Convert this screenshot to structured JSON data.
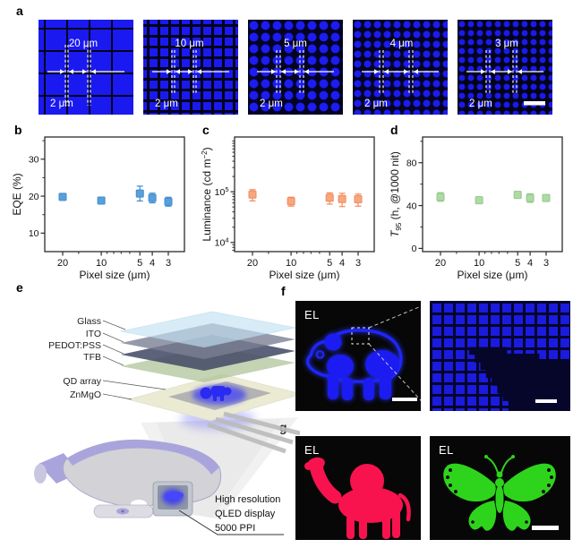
{
  "panels": {
    "a": "a",
    "b": "b",
    "c": "c",
    "d": "d",
    "e": "e",
    "f": "f",
    "g": "g"
  },
  "panel_a": {
    "micrographs": [
      {
        "pitch": "20 μm",
        "gap": "2 μm",
        "scalebar": false
      },
      {
        "pitch": "10 μm",
        "gap": "2 μm",
        "scalebar": false
      },
      {
        "pitch": "5 μm",
        "gap": "2 μm",
        "scalebar": false
      },
      {
        "pitch": "4 μm",
        "gap": "2 μm",
        "scalebar": false
      },
      {
        "pitch": "3 μm",
        "gap": "2 μm",
        "scalebar": true
      }
    ],
    "pixel_color": "#1a1af0"
  },
  "chart_data": [
    {
      "type": "scatter",
      "panel": "b",
      "xlabel": "Pixel size (μm)",
      "ylabel": [
        {
          "t": "EQE (%)"
        }
      ],
      "xscale": "log-reversed",
      "xticks": [
        20,
        10,
        5,
        4,
        3
      ],
      "xminor": [
        15,
        9,
        8,
        7,
        6
      ],
      "yscale": "linear",
      "ylim": [
        5,
        36
      ],
      "yticks": [
        {
          "v": 10,
          "t": "10"
        },
        {
          "v": 20,
          "t": "20"
        },
        {
          "v": 30,
          "t": "30"
        }
      ],
      "yminor": [
        15,
        25,
        35
      ],
      "x": [
        20,
        10,
        5,
        4,
        3
      ],
      "y": [
        19.8,
        18.8,
        20.7,
        19.5,
        18.5
      ],
      "yerr": [
        0.8,
        0.6,
        2.0,
        1.3,
        1.2
      ],
      "marker_color": "#58A0DB",
      "edge_color": "#3E8CCD"
    },
    {
      "type": "scatter",
      "panel": "c",
      "xlabel": "Pixel size (μm)",
      "ylabel": [
        {
          "t": "Luminance (cd m"
        },
        {
          "t": "−2",
          "sup": true
        },
        {
          "t": ")"
        }
      ],
      "xscale": "log-reversed",
      "xticks": [
        20,
        10,
        5,
        4,
        3
      ],
      "xminor": [
        15,
        9,
        8,
        7,
        6
      ],
      "yscale": "log",
      "ylim": [
        6600,
        1200000
      ],
      "yticks": [
        {
          "v": 10000,
          "t": "10",
          "exp": "4"
        },
        {
          "v": 100000,
          "t": "10",
          "exp": "5"
        }
      ],
      "yminor": [
        7000,
        8000,
        9000,
        20000,
        30000,
        40000,
        50000,
        60000,
        70000,
        80000,
        90000,
        200000,
        300000,
        400000,
        500000,
        600000,
        700000,
        800000,
        900000,
        1000000
      ],
      "x": [
        20,
        10,
        5,
        4,
        3
      ],
      "y": [
        88000,
        65000,
        76000,
        72000,
        71000
      ],
      "yerr": [
        22000,
        13000,
        19000,
        21000,
        19000
      ],
      "marker_color": "#F7A77E",
      "edge_color": "#F08A5C"
    },
    {
      "type": "scatter",
      "panel": "d",
      "xlabel": "Pixel size (μm)",
      "ylabel": [
        {
          "t": "T",
          "italic": true
        },
        {
          "t": "95",
          "sub": true
        },
        {
          "t": " (h, @1000 nit)"
        }
      ],
      "xscale": "log-reversed",
      "xticks": [
        20,
        10,
        5,
        4,
        3
      ],
      "xminor": [
        15,
        9,
        8,
        7,
        6
      ],
      "yscale": "linear",
      "ylim": [
        -3,
        104
      ],
      "yticks": [
        {
          "v": 0,
          "t": "0"
        },
        {
          "v": 40,
          "t": "40"
        },
        {
          "v": 80,
          "t": "80"
        }
      ],
      "yminor": [
        20,
        60,
        100
      ],
      "x": [
        20,
        10,
        5,
        4,
        3
      ],
      "y": [
        48,
        45,
        50,
        47,
        47
      ],
      "yerr": [
        4,
        3,
        3,
        4,
        3
      ],
      "marker_color": "#AEDAA6",
      "edge_color": "#92C88A"
    }
  ],
  "panel_e": {
    "layer_labels": [
      "Glass",
      "ITO",
      "PEDOT:PSS",
      "TFB",
      "QD array",
      "ZnMgO"
    ],
    "annotation": [
      "High resolution",
      "QLED display",
      "5000 PPI"
    ]
  },
  "panel_f": {
    "el": "EL"
  },
  "panel_g": {
    "el_left": "EL",
    "el_right": "EL"
  }
}
